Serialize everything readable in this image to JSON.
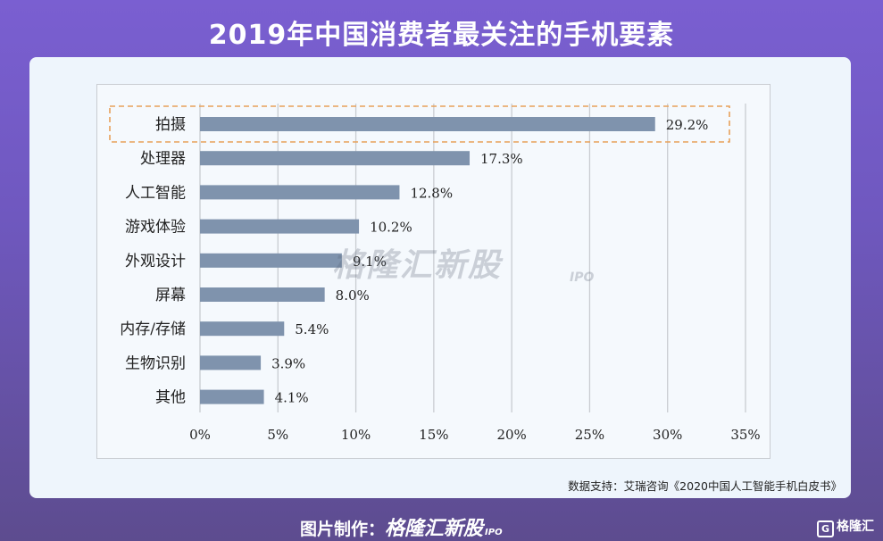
{
  "title": "2019年中国消费者最关注的手机要素",
  "source": "数据支持：艾瑞咨询《2020中国人工智能手机白皮书》",
  "watermark": {
    "brand": "格隆汇新股",
    "sub": "IPO"
  },
  "footer": {
    "label": "图片制作：",
    "brand": "格隆汇新股",
    "sub": "IPO"
  },
  "corner_logo": {
    "icon": "G",
    "text": "格隆汇"
  },
  "colors": {
    "bar": "#7f93ad",
    "highlight": "#e8a15a",
    "grid": "#c9ccd1"
  },
  "chart_data": {
    "type": "bar",
    "orientation": "horizontal",
    "categories": [
      "拍摄",
      "处理器",
      "人工智能",
      "游戏体验",
      "外观设计",
      "屏幕",
      "内存/存储",
      "生物识别",
      "其他"
    ],
    "values": [
      29.2,
      17.3,
      12.8,
      10.2,
      9.1,
      8.0,
      5.4,
      3.9,
      4.1
    ],
    "value_labels": [
      "29.2%",
      "17.3%",
      "12.8%",
      "10.2%",
      "9.1%",
      "8.0%",
      "5.4%",
      "3.9%",
      "4.1%"
    ],
    "xticks": [
      "0%",
      "5%",
      "10%",
      "15%",
      "20%",
      "25%",
      "30%",
      "35%"
    ],
    "xlim": [
      0,
      35
    ],
    "grid": "vertical",
    "highlighted_category": "拍摄"
  }
}
